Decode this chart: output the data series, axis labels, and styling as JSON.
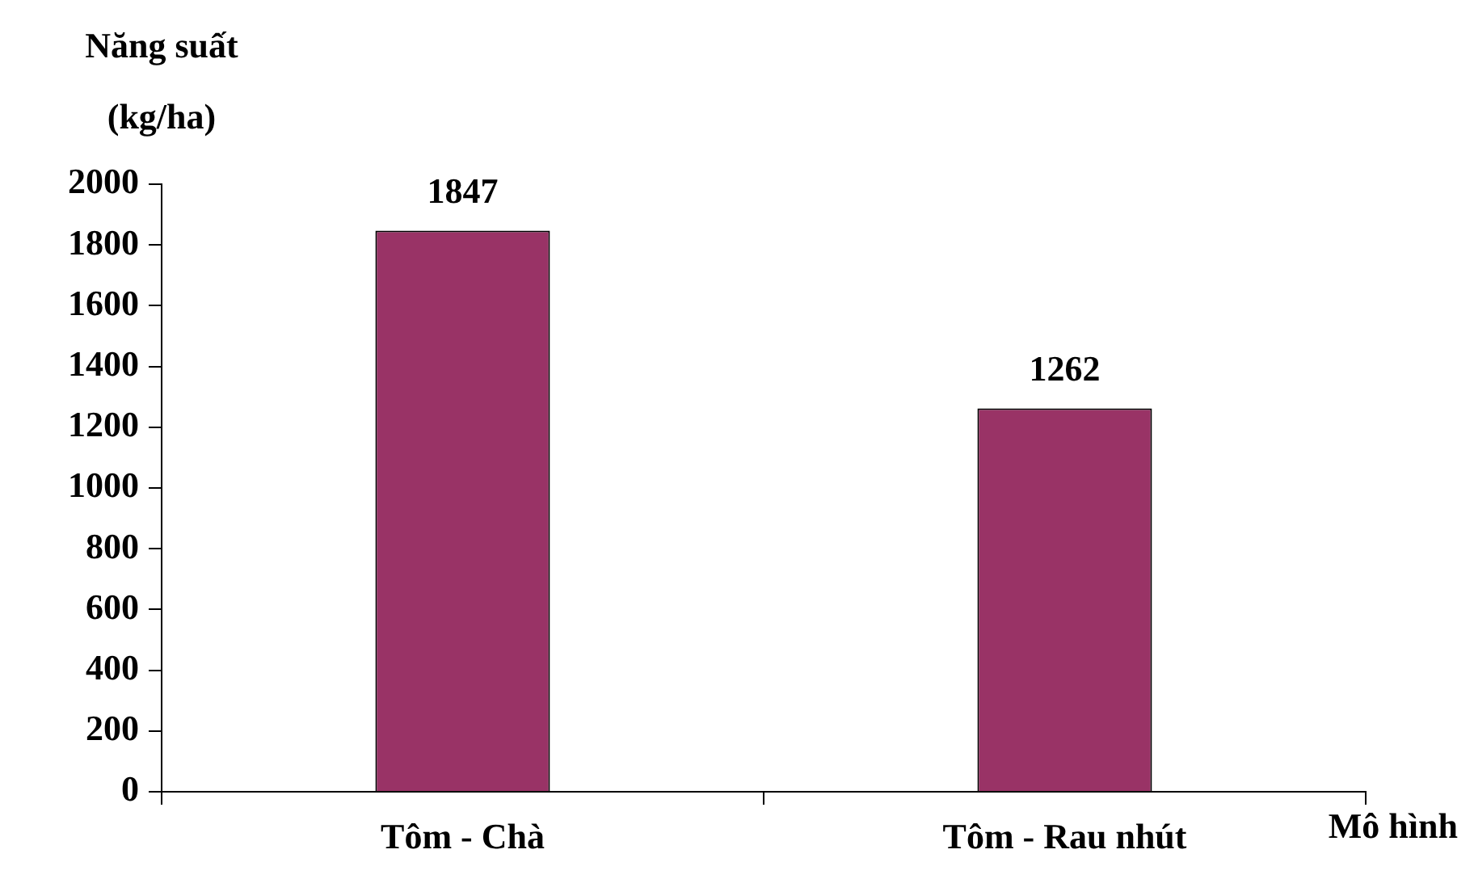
{
  "chart_data": {
    "type": "bar",
    "xlabel": "Mô hình",
    "ylabel": "Năng suất (kg/ha)",
    "categories": [
      "Tôm - Chà",
      "Tôm - Rau nhút"
    ],
    "values": [
      1847,
      1262
    ],
    "color": "#993366",
    "ylim": [
      0,
      2000
    ],
    "yticks": [
      0,
      200,
      400,
      600,
      800,
      1000,
      1200,
      1400,
      1600,
      1800,
      2000
    ],
    "grid": false,
    "legend": false,
    "data_labels": true
  }
}
